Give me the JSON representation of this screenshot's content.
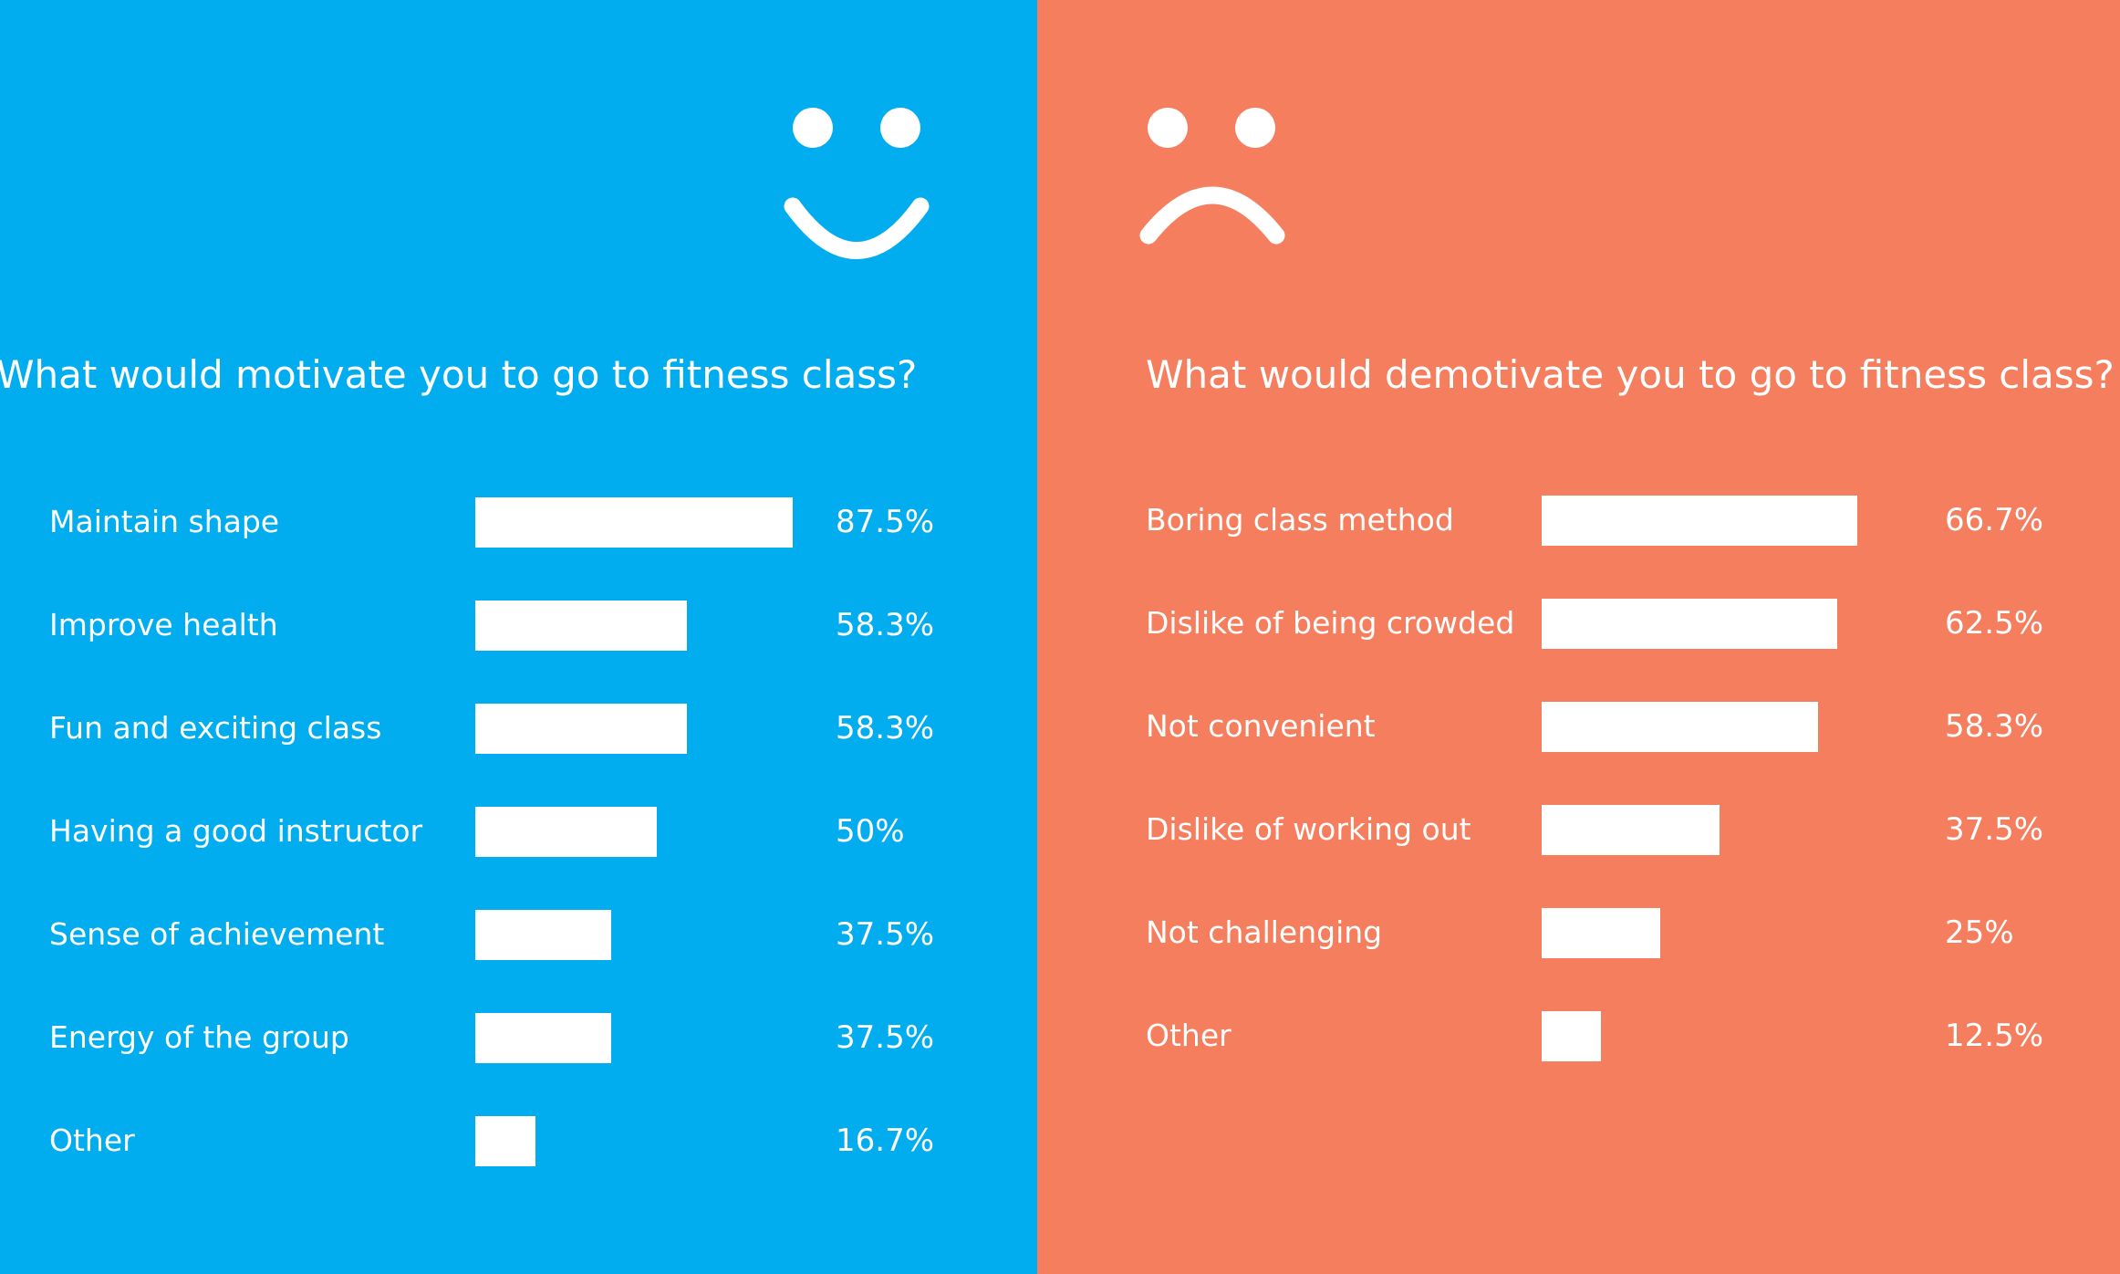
{
  "colors": {
    "left_bg": "#01adee",
    "right_bg": "#f47e5d",
    "bar": "#ffffff",
    "text": "#ffffff"
  },
  "icons": {
    "left": "smiley-face-icon",
    "right": "sad-face-icon"
  },
  "chart_data": [
    {
      "type": "bar",
      "orientation": "horizontal",
      "title": "What would motivate you to go to fitness class?",
      "categories": [
        "Maintain shape",
        "Improve health",
        "Fun and exciting class",
        "Having a good instructor",
        "Sense of achievement",
        "Energy of the group",
        "Other"
      ],
      "values": [
        87.5,
        58.3,
        58.3,
        50,
        37.5,
        37.5,
        16.7
      ],
      "value_labels": [
        "87.5%",
        "58.3%",
        "58.3%",
        "50%",
        "37.5%",
        "37.5%",
        "16.7%"
      ],
      "xlim": [
        0,
        100
      ],
      "grid": false
    },
    {
      "type": "bar",
      "orientation": "horizontal",
      "title": "What would demotivate you to go to fitness class?",
      "categories": [
        "Boring class method",
        "Dislike of being crowded",
        "Not convenient",
        "Dislike of working out",
        "Not challenging",
        "Other"
      ],
      "values": [
        66.7,
        62.5,
        58.3,
        37.5,
        25,
        12.5
      ],
      "value_labels": [
        "66.7%",
        "62.5%",
        "58.3%",
        "37.5%",
        "25%",
        "12.5%"
      ],
      "xlim": [
        0,
        100
      ],
      "grid": false
    }
  ]
}
